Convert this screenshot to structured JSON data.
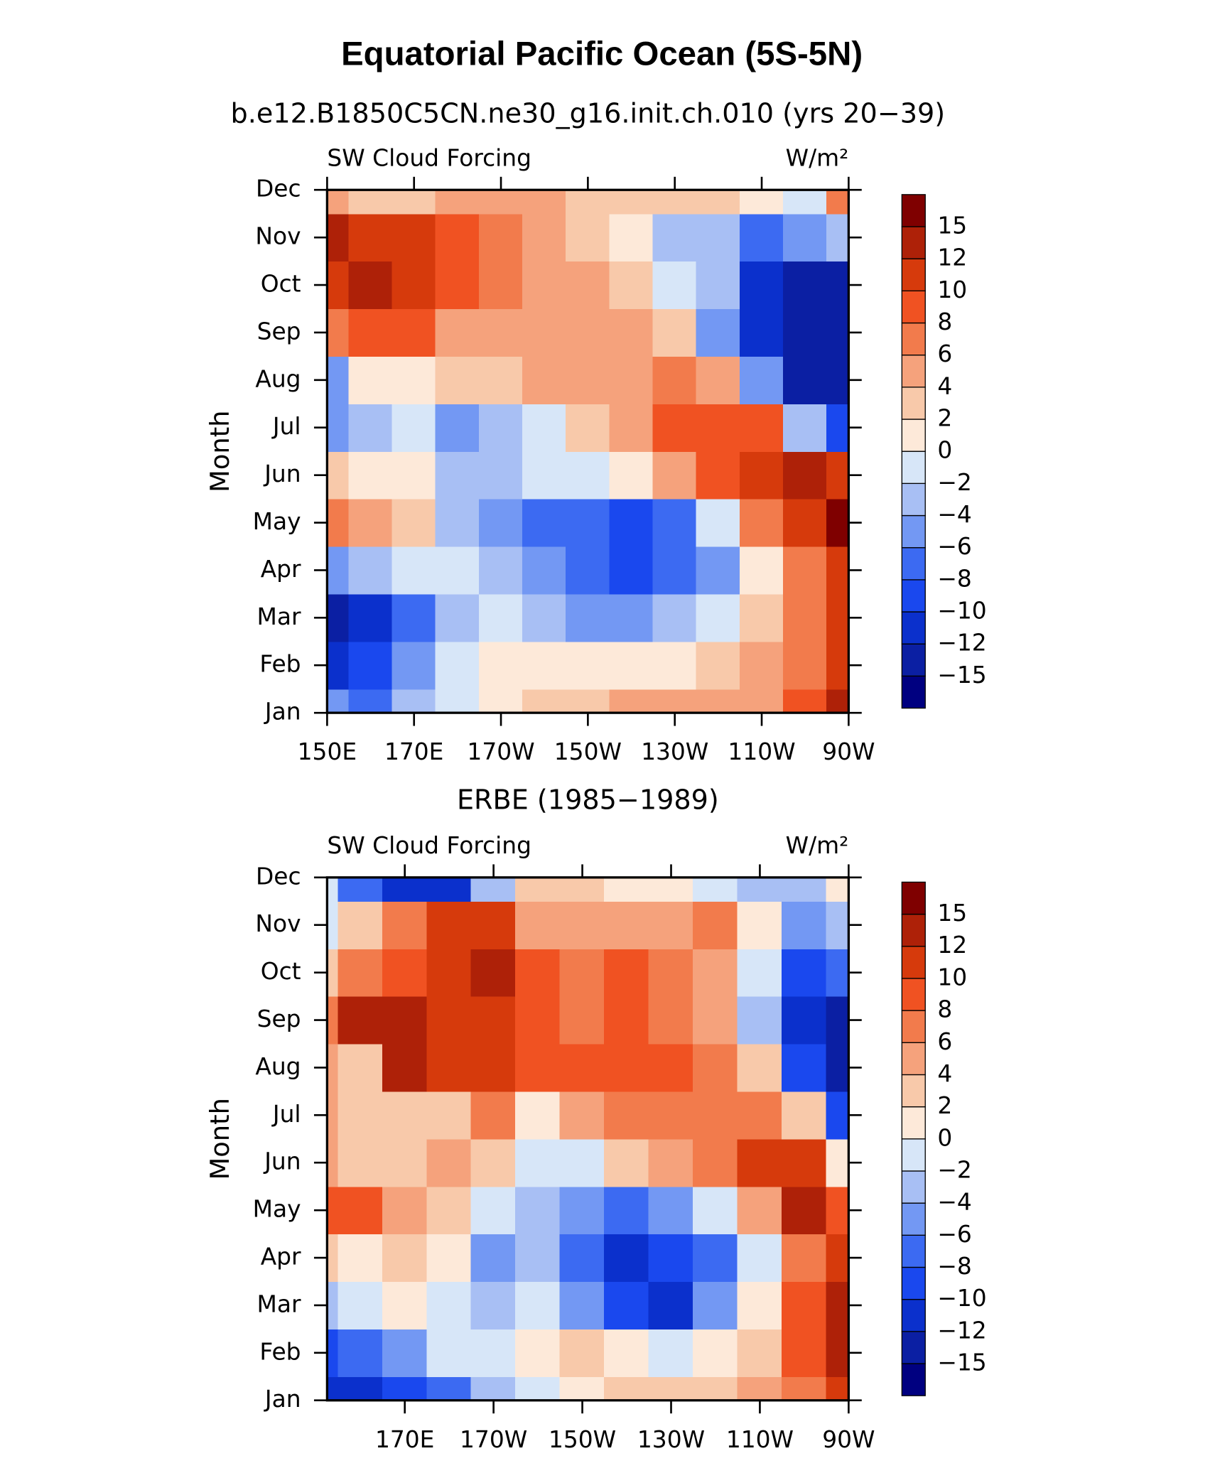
{
  "title": "Equatorial Pacific Ocean (5S-5N)",
  "chart_data": [
    {
      "type": "contour",
      "title": "b.e12.B1850C5CN.ne30_g16.init.ch.010 (yrs 20−39)",
      "left_string": "SW Cloud Forcing",
      "right_string": "W/m²",
      "y_label": "Month",
      "categories": [
        "Jan",
        "Feb",
        "Mar",
        "Apr",
        "May",
        "Jun",
        "Jul",
        "Aug",
        "Sep",
        "Oct",
        "Nov",
        "Dec"
      ],
      "x": [
        150,
        160,
        170,
        180,
        190,
        200,
        210,
        220,
        230,
        240,
        250,
        260,
        270
      ],
      "xlim": [
        150,
        270
      ],
      "xticks": [
        {
          "value": 150,
          "label": "150E"
        },
        {
          "value": 170,
          "label": "170E"
        },
        {
          "value": 190,
          "label": "170W"
        },
        {
          "value": 210,
          "label": "150W"
        },
        {
          "value": 230,
          "label": "130W"
        },
        {
          "value": 250,
          "label": "110W"
        },
        {
          "value": 270,
          "label": "90W"
        }
      ],
      "z": [
        [
          -6,
          -8,
          -4,
          -2,
          0,
          2,
          2,
          4,
          4,
          4,
          4,
          8,
          12
        ],
        [
          -12,
          -10,
          -6,
          -2,
          0,
          0,
          0,
          0,
          0,
          2,
          4,
          6,
          10
        ],
        [
          -15,
          -12,
          -8,
          -4,
          -2,
          -4,
          -6,
          -6,
          -4,
          -2,
          2,
          6,
          10
        ],
        [
          -6,
          -4,
          -2,
          -2,
          -4,
          -6,
          -8,
          -10,
          -8,
          -6,
          0,
          6,
          10
        ],
        [
          6,
          4,
          2,
          -4,
          -6,
          -8,
          -8,
          -10,
          -8,
          -2,
          6,
          10,
          15
        ],
        [
          2,
          0,
          0,
          -4,
          -4,
          -2,
          -2,
          0,
          4,
          8,
          10,
          12,
          10
        ],
        [
          -6,
          -4,
          -2,
          -6,
          -4,
          -2,
          2,
          4,
          8,
          8,
          8,
          -4,
          -10
        ],
        [
          -6,
          0,
          0,
          2,
          2,
          4,
          4,
          4,
          6,
          4,
          -6,
          -15,
          -15
        ],
        [
          6,
          8,
          8,
          4,
          4,
          4,
          4,
          4,
          2,
          -6,
          -12,
          -15,
          -15
        ],
        [
          10,
          12,
          10,
          8,
          6,
          4,
          4,
          2,
          -2,
          -4,
          -12,
          -15,
          -15
        ],
        [
          12,
          10,
          10,
          8,
          6,
          4,
          2,
          0,
          -4,
          -4,
          -8,
          -6,
          -4
        ],
        [
          4,
          2,
          2,
          4,
          4,
          4,
          2,
          2,
          2,
          2,
          0,
          -2,
          6
        ]
      ],
      "levels": [
        {
          "value": -15,
          "label": "−15"
        },
        {
          "value": -12,
          "label": "−12"
        },
        {
          "value": -10,
          "label": "−10"
        },
        {
          "value": -8,
          "label": "−8"
        },
        {
          "value": -6,
          "label": "−6"
        },
        {
          "value": -4,
          "label": "−4"
        },
        {
          "value": -2,
          "label": "−2"
        },
        0,
        2,
        4,
        6,
        8,
        10,
        12,
        15
      ],
      "colors": [
        "#000080",
        "#0b1fa3",
        "#0b30cc",
        "#1a48ee",
        "#3c6af2",
        "#7398f3",
        "#a8bff4",
        "#d7e6f8",
        "#fde9d9",
        "#f8c9aa",
        "#f5a27c",
        "#f27b4c",
        "#f05222",
        "#d63a0c",
        "#ae2108",
        "#7f0000"
      ]
    },
    {
      "type": "contour",
      "title": "ERBE (1985−1989)",
      "left_string": "SW Cloud Forcing",
      "right_string": "W/m²",
      "y_label": "Month",
      "categories": [
        "Jan",
        "Feb",
        "Mar",
        "Apr",
        "May",
        "Jun",
        "Jul",
        "Aug",
        "Sep",
        "Oct",
        "Nov",
        "Dec"
      ],
      "x": [
        150,
        160,
        170,
        180,
        190,
        200,
        210,
        220,
        230,
        240,
        250,
        260,
        270
      ],
      "xlim": [
        152.5,
        270
      ],
      "xticks": [
        {
          "value": 170,
          "label": "170E"
        },
        {
          "value": 190,
          "label": "170W"
        },
        {
          "value": 210,
          "label": "150W"
        },
        {
          "value": 230,
          "label": "130W"
        },
        {
          "value": 250,
          "label": "110W"
        },
        {
          "value": 270,
          "label": "90W"
        }
      ],
      "z": [
        [
          -12,
          -12,
          -10,
          -8,
          -4,
          -2,
          0,
          2,
          2,
          2,
          4,
          6,
          10
        ],
        [
          -10,
          -8,
          -6,
          -2,
          -2,
          0,
          2,
          0,
          -2,
          0,
          2,
          8,
          12
        ],
        [
          -4,
          -2,
          0,
          -2,
          -4,
          -2,
          -6,
          -10,
          -12,
          -6,
          0,
          8,
          12
        ],
        [
          2,
          0,
          2,
          0,
          -6,
          -4,
          -8,
          -12,
          -10,
          -8,
          -2,
          6,
          10
        ],
        [
          8,
          8,
          4,
          2,
          -2,
          -4,
          -6,
          -8,
          -6,
          -2,
          4,
          12,
          8
        ],
        [
          4,
          2,
          2,
          4,
          2,
          -2,
          -2,
          2,
          4,
          6,
          10,
          10,
          0
        ],
        [
          4,
          2,
          2,
          2,
          6,
          0,
          4,
          6,
          6,
          6,
          6,
          2,
          -10
        ],
        [
          4,
          2,
          12,
          10,
          10,
          8,
          8,
          8,
          8,
          6,
          2,
          -10,
          -15
        ],
        [
          6,
          12,
          12,
          10,
          10,
          8,
          6,
          8,
          6,
          4,
          -4,
          -12,
          -15
        ],
        [
          2,
          6,
          8,
          10,
          12,
          8,
          6,
          8,
          6,
          4,
          -2,
          -10,
          -8
        ],
        [
          -2,
          2,
          6,
          10,
          10,
          4,
          4,
          4,
          4,
          6,
          0,
          -6,
          -4
        ],
        [
          -2,
          -8,
          -12,
          -12,
          -4,
          2,
          2,
          0,
          0,
          -2,
          -4,
          -4,
          0
        ]
      ],
      "levels": [
        {
          "value": -15,
          "label": "−15"
        },
        {
          "value": -12,
          "label": "−12"
        },
        {
          "value": -10,
          "label": "−10"
        },
        {
          "value": -8,
          "label": "−8"
        },
        {
          "value": -6,
          "label": "−6"
        },
        {
          "value": -4,
          "label": "−4"
        },
        {
          "value": -2,
          "label": "−2"
        },
        0,
        2,
        4,
        6,
        8,
        10,
        12,
        15
      ],
      "colors": [
        "#000080",
        "#0b1fa3",
        "#0b30cc",
        "#1a48ee",
        "#3c6af2",
        "#7398f3",
        "#a8bff4",
        "#d7e6f8",
        "#fde9d9",
        "#f8c9aa",
        "#f5a27c",
        "#f27b4c",
        "#f05222",
        "#d63a0c",
        "#ae2108",
        "#7f0000"
      ]
    }
  ]
}
